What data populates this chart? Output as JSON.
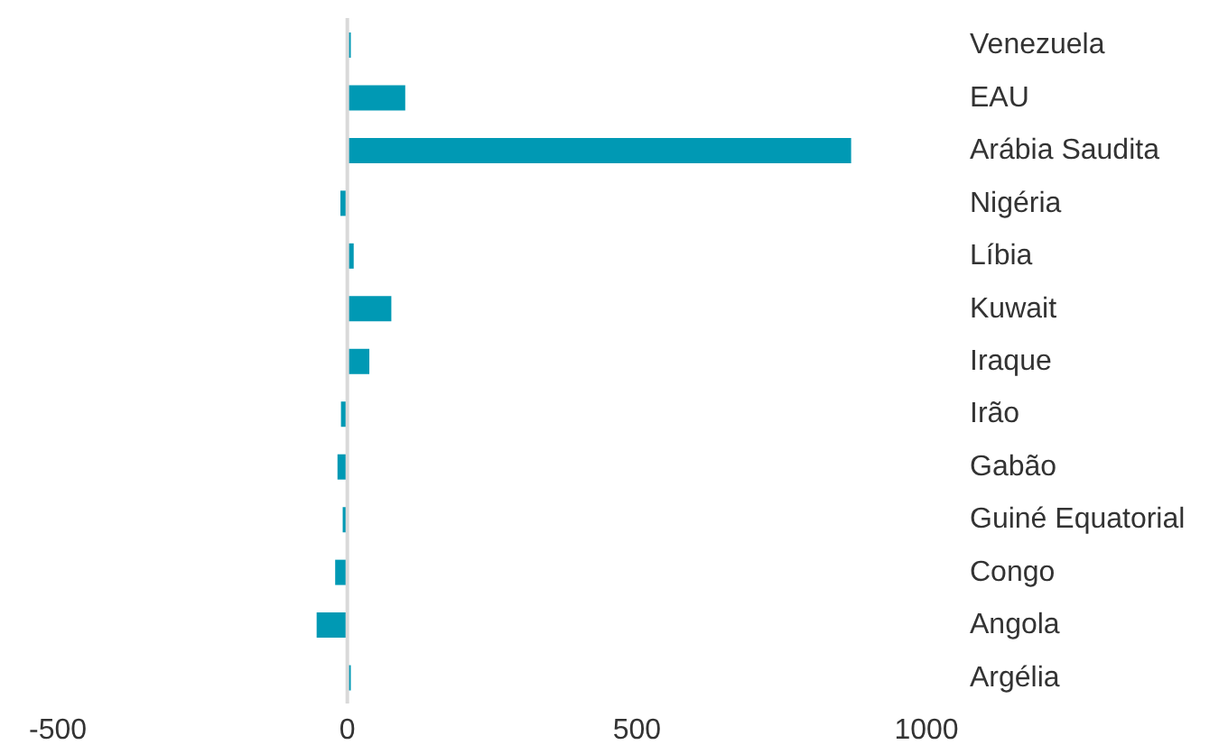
{
  "chart_data": {
    "type": "bar",
    "orientation": "horizontal",
    "categories": [
      "Venezuela",
      "EAU",
      "Arábia Saudita",
      "Nigéria",
      "Líbia",
      "Kuwait",
      "Iraque",
      "Irão",
      "Gabão",
      "Guiné Equatorial",
      "Congo",
      "Angola",
      "Argélia"
    ],
    "values": [
      6,
      100,
      870,
      -12,
      11,
      76,
      38,
      -11,
      -17,
      -8,
      -21,
      -53,
      6
    ],
    "color": "#0099b4",
    "xlim": [
      -500,
      1000
    ],
    "xticks": [
      -500,
      0,
      500,
      1000
    ],
    "ref_lines": [
      {
        "axis": "x",
        "value": 0,
        "color": "#d9d9d9"
      }
    ],
    "grid": false,
    "legend": false
  }
}
